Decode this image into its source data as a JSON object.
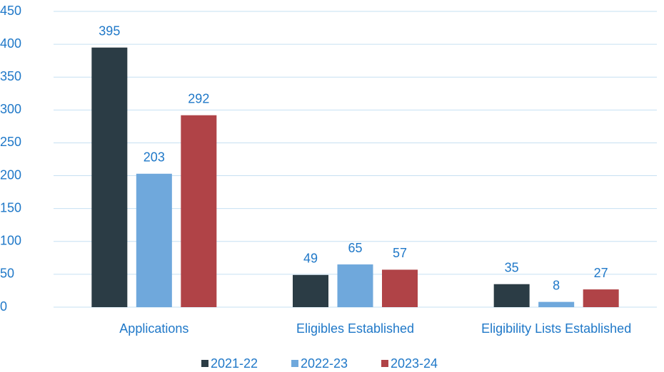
{
  "chart_data": {
    "type": "bar",
    "categories": [
      "Applications",
      "Eligibles Established",
      "Eligibility Lists Established"
    ],
    "series": [
      {
        "name": "2021-22",
        "color": "#2b3c45",
        "values": [
          395,
          49,
          35
        ]
      },
      {
        "name": "2022-23",
        "color": "#6fa8dc",
        "values": [
          203,
          65,
          8
        ]
      },
      {
        "name": "2023-24",
        "color": "#b04347",
        "values": [
          292,
          57,
          27
        ]
      }
    ],
    "ylim": [
      0,
      450
    ],
    "yticks": [
      0,
      50,
      100,
      150,
      200,
      250,
      300,
      350,
      400,
      450
    ],
    "grid": true,
    "legend": "bottom"
  }
}
